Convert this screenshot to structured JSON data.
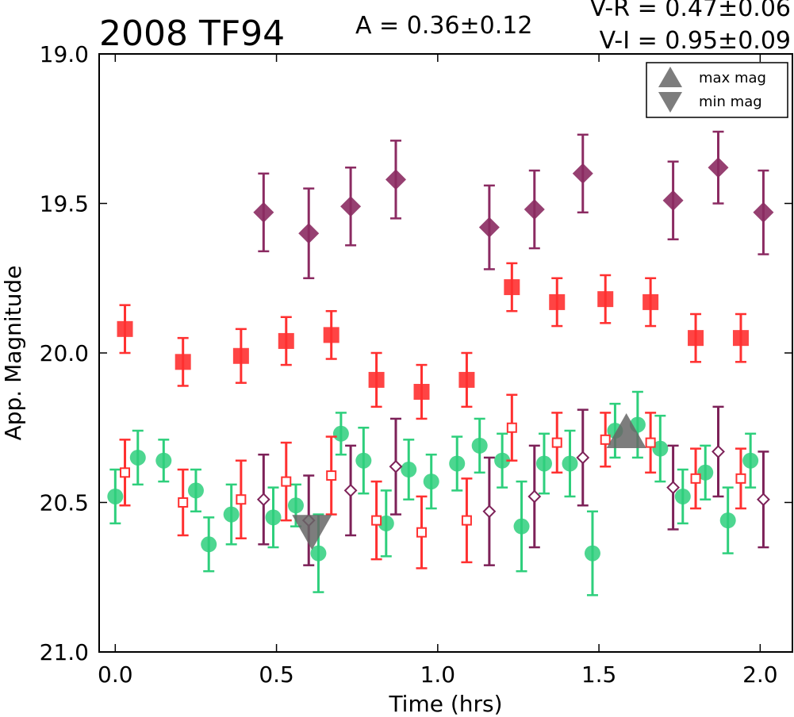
{
  "chart_data": {
    "type": "scatter",
    "title": "2008 TF94",
    "annotations": {
      "amplitude": "A  = 0.36±0.12",
      "vr": "V-R = 0.47±0.06",
      "vi": "V-I  = 0.95±0.09"
    },
    "xlabel": "Time (hrs)",
    "ylabel": "App. Magnitude",
    "xlim": [
      -0.05,
      2.1
    ],
    "ylim": [
      21.0,
      19.0
    ],
    "y_inverted": true,
    "xticks": [
      "0.0",
      "0.5",
      "1.0",
      "1.5",
      "2.0"
    ],
    "yticks": [
      "19.0",
      "19.5",
      "20.0",
      "20.5",
      "21.0"
    ],
    "grid": false,
    "legend": {
      "placement": "top-right",
      "entries": [
        "max mag",
        "min mag"
      ]
    },
    "series": [
      {
        "marker": "diamond-filled",
        "color": "#8b2b62",
        "points": [
          {
            "x": 0.46,
            "y": 19.53,
            "err": 0.13
          },
          {
            "x": 0.6,
            "y": 19.6,
            "err": 0.15
          },
          {
            "x": 0.73,
            "y": 19.51,
            "err": 0.13
          },
          {
            "x": 0.87,
            "y": 19.42,
            "err": 0.13
          },
          {
            "x": 1.16,
            "y": 19.58,
            "err": 0.14
          },
          {
            "x": 1.3,
            "y": 19.52,
            "err": 0.13
          },
          {
            "x": 1.45,
            "y": 19.4,
            "err": 0.13
          },
          {
            "x": 1.73,
            "y": 19.49,
            "err": 0.13
          },
          {
            "x": 1.87,
            "y": 19.38,
            "err": 0.12
          },
          {
            "x": 2.01,
            "y": 19.53,
            "err": 0.14
          }
        ]
      },
      {
        "marker": "square-filled",
        "color": "#ff3030",
        "points": [
          {
            "x": 0.03,
            "y": 19.92,
            "err": 0.08
          },
          {
            "x": 0.21,
            "y": 20.03,
            "err": 0.08
          },
          {
            "x": 0.39,
            "y": 20.01,
            "err": 0.09
          },
          {
            "x": 0.53,
            "y": 19.96,
            "err": 0.08
          },
          {
            "x": 0.67,
            "y": 19.94,
            "err": 0.08
          },
          {
            "x": 0.81,
            "y": 20.09,
            "err": 0.09
          },
          {
            "x": 0.95,
            "y": 20.13,
            "err": 0.09
          },
          {
            "x": 1.09,
            "y": 20.09,
            "err": 0.09
          },
          {
            "x": 1.23,
            "y": 19.78,
            "err": 0.08
          },
          {
            "x": 1.37,
            "y": 19.83,
            "err": 0.08
          },
          {
            "x": 1.52,
            "y": 19.82,
            "err": 0.08
          },
          {
            "x": 1.66,
            "y": 19.83,
            "err": 0.08
          },
          {
            "x": 1.8,
            "y": 19.95,
            "err": 0.08
          },
          {
            "x": 1.94,
            "y": 19.95,
            "err": 0.08
          }
        ]
      },
      {
        "marker": "circle-filled",
        "color": "#2ecf7c",
        "points": [
          {
            "x": 0.0,
            "y": 20.48,
            "err": 0.09
          },
          {
            "x": 0.07,
            "y": 20.35,
            "err": 0.09
          },
          {
            "x": 0.15,
            "y": 20.36,
            "err": 0.07
          },
          {
            "x": 0.25,
            "y": 20.46,
            "err": 0.07
          },
          {
            "x": 0.29,
            "y": 20.64,
            "err": 0.09
          },
          {
            "x": 0.36,
            "y": 20.54,
            "err": 0.1
          },
          {
            "x": 0.49,
            "y": 20.55,
            "err": 0.1
          },
          {
            "x": 0.56,
            "y": 20.51,
            "err": 0.07
          },
          {
            "x": 0.63,
            "y": 20.67,
            "err": 0.13
          },
          {
            "x": 0.7,
            "y": 20.27,
            "err": 0.07
          },
          {
            "x": 0.77,
            "y": 20.36,
            "err": 0.11
          },
          {
            "x": 0.84,
            "y": 20.57,
            "err": 0.11
          },
          {
            "x": 0.91,
            "y": 20.39,
            "err": 0.1
          },
          {
            "x": 0.98,
            "y": 20.43,
            "err": 0.09
          },
          {
            "x": 1.06,
            "y": 20.37,
            "err": 0.09
          },
          {
            "x": 1.13,
            "y": 20.31,
            "err": 0.09
          },
          {
            "x": 1.2,
            "y": 20.36,
            "err": 0.09
          },
          {
            "x": 1.26,
            "y": 20.58,
            "err": 0.15
          },
          {
            "x": 1.33,
            "y": 20.37,
            "err": 0.1
          },
          {
            "x": 1.41,
            "y": 20.37,
            "err": 0.11
          },
          {
            "x": 1.48,
            "y": 20.67,
            "err": 0.14
          },
          {
            "x": 1.55,
            "y": 20.26,
            "err": 0.09
          },
          {
            "x": 1.62,
            "y": 20.24,
            "err": 0.11
          },
          {
            "x": 1.69,
            "y": 20.32,
            "err": 0.11
          },
          {
            "x": 1.76,
            "y": 20.48,
            "err": 0.09
          },
          {
            "x": 1.83,
            "y": 20.4,
            "err": 0.09
          },
          {
            "x": 1.9,
            "y": 20.56,
            "err": 0.11
          },
          {
            "x": 1.97,
            "y": 20.36,
            "err": 0.09
          }
        ]
      },
      {
        "marker": "square-open",
        "color": "#ff3030",
        "points": [
          {
            "x": 0.03,
            "y": 20.4,
            "err": 0.11
          },
          {
            "x": 0.21,
            "y": 20.5,
            "err": 0.11
          },
          {
            "x": 0.39,
            "y": 20.49,
            "err": 0.13
          },
          {
            "x": 0.53,
            "y": 20.43,
            "err": 0.13
          },
          {
            "x": 0.67,
            "y": 20.41,
            "err": 0.13
          },
          {
            "x": 0.81,
            "y": 20.56,
            "err": 0.13
          },
          {
            "x": 0.95,
            "y": 20.6,
            "err": 0.12
          },
          {
            "x": 1.09,
            "y": 20.56,
            "err": 0.14
          },
          {
            "x": 1.23,
            "y": 20.25,
            "err": 0.11
          },
          {
            "x": 1.37,
            "y": 20.3,
            "err": 0.1
          },
          {
            "x": 1.52,
            "y": 20.29,
            "err": 0.09
          },
          {
            "x": 1.66,
            "y": 20.3,
            "err": 0.1
          },
          {
            "x": 1.8,
            "y": 20.42,
            "err": 0.1
          },
          {
            "x": 1.94,
            "y": 20.42,
            "err": 0.1
          }
        ]
      },
      {
        "marker": "diamond-open",
        "color": "#7d2158",
        "points": [
          {
            "x": 0.46,
            "y": 20.49,
            "err": 0.15
          },
          {
            "x": 0.6,
            "y": 20.56,
            "err": 0.15
          },
          {
            "x": 0.73,
            "y": 20.46,
            "err": 0.15
          },
          {
            "x": 0.87,
            "y": 20.38,
            "err": 0.16
          },
          {
            "x": 1.16,
            "y": 20.53,
            "err": 0.18
          },
          {
            "x": 1.3,
            "y": 20.48,
            "err": 0.17
          },
          {
            "x": 1.45,
            "y": 20.35,
            "err": 0.16
          },
          {
            "x": 1.73,
            "y": 20.45,
            "err": 0.14
          },
          {
            "x": 1.87,
            "y": 20.33,
            "err": 0.15
          },
          {
            "x": 2.01,
            "y": 20.49,
            "err": 0.16
          }
        ]
      },
      {
        "marker": "triangle-up",
        "color": "#666666",
        "points": [
          {
            "x": 1.585,
            "y": 20.26
          }
        ]
      },
      {
        "marker": "triangle-down",
        "color": "#666666",
        "points": [
          {
            "x": 0.61,
            "y": 20.6
          }
        ]
      }
    ]
  }
}
